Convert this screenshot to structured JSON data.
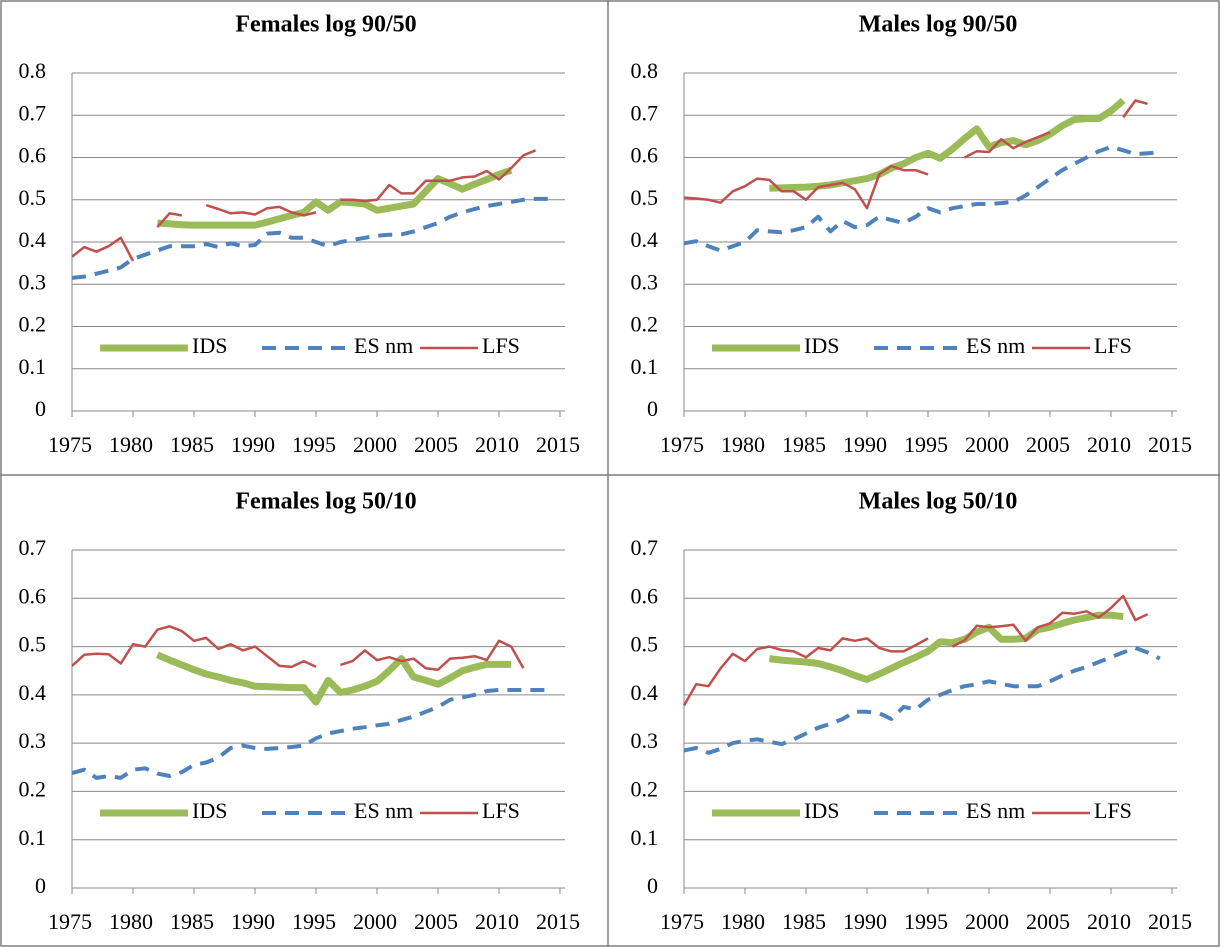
{
  "chart_data": [
    {
      "type": "line",
      "title": "Females log 90/50",
      "x": [
        1975,
        1976,
        1977,
        1978,
        1979,
        1980,
        1981,
        1982,
        1983,
        1984,
        1985,
        1986,
        1987,
        1988,
        1989,
        1990,
        1991,
        1992,
        1993,
        1994,
        1995,
        1996,
        1997,
        1998,
        1999,
        2000,
        2001,
        2002,
        2003,
        2004,
        2005,
        2006,
        2007,
        2008,
        2009,
        2010,
        2011,
        2012,
        2013,
        2014
      ],
      "xlim": [
        1975,
        2015
      ],
      "xticks": [
        1975,
        1980,
        1985,
        1990,
        1995,
        2000,
        2005,
        2010,
        2015
      ],
      "ylim": [
        0,
        0.8
      ],
      "yticks": [
        0,
        0.1,
        0.2,
        0.3,
        0.4,
        0.5,
        0.6,
        0.7,
        0.8
      ],
      "grid": true,
      "series": [
        {
          "name": "IDS",
          "color": "#9bbb59",
          "values": [
            null,
            null,
            null,
            null,
            null,
            null,
            null,
            0.445,
            0.443,
            0.441,
            0.44,
            0.44,
            0.44,
            0.44,
            0.44,
            0.44,
            0.447,
            0.455,
            0.463,
            0.47,
            0.495,
            0.475,
            0.495,
            0.493,
            0.49,
            0.475,
            0.48,
            0.485,
            0.49,
            0.52,
            0.55,
            0.538,
            0.525,
            0.537,
            0.548,
            0.56,
            0.57,
            null,
            null,
            null
          ]
        },
        {
          "name": "ES nm",
          "color": "#4f81bd",
          "values": [
            0.315,
            0.318,
            0.325,
            0.332,
            0.34,
            0.36,
            0.37,
            0.38,
            0.39,
            0.39,
            0.39,
            0.395,
            0.388,
            0.397,
            0.39,
            0.393,
            0.42,
            0.422,
            0.41,
            0.41,
            0.4,
            0.39,
            0.4,
            0.405,
            0.41,
            0.415,
            0.417,
            0.418,
            0.425,
            0.435,
            0.445,
            0.46,
            0.47,
            0.478,
            0.485,
            0.49,
            0.495,
            0.5,
            0.502,
            0.502
          ]
        },
        {
          "name": "LFS",
          "color": "#c0504d",
          "values": [
            0.365,
            0.388,
            0.377,
            0.39,
            0.41,
            0.355,
            null,
            0.435,
            0.468,
            0.463,
            null,
            0.487,
            0.478,
            0.468,
            0.47,
            0.465,
            0.48,
            0.483,
            0.47,
            0.463,
            0.47,
            null,
            0.5,
            0.5,
            0.497,
            0.5,
            0.535,
            0.515,
            0.515,
            0.545,
            0.545,
            0.545,
            0.553,
            0.555,
            0.568,
            0.548,
            0.575,
            0.605,
            0.617,
            null
          ]
        }
      ]
    },
    {
      "type": "line",
      "title": "Males log 90/50",
      "x": [
        1975,
        1976,
        1977,
        1978,
        1979,
        1980,
        1981,
        1982,
        1983,
        1984,
        1985,
        1986,
        1987,
        1988,
        1989,
        1990,
        1991,
        1992,
        1993,
        1994,
        1995,
        1996,
        1997,
        1998,
        1999,
        2000,
        2001,
        2002,
        2003,
        2004,
        2005,
        2006,
        2007,
        2008,
        2009,
        2010,
        2011,
        2012,
        2013,
        2014
      ],
      "xlim": [
        1975,
        2015
      ],
      "xticks": [
        1975,
        1980,
        1985,
        1990,
        1995,
        2000,
        2005,
        2010,
        2015
      ],
      "ylim": [
        0,
        0.8
      ],
      "yticks": [
        0,
        0.1,
        0.2,
        0.3,
        0.4,
        0.5,
        0.6,
        0.7,
        0.8
      ],
      "grid": true,
      "series": [
        {
          "name": "IDS",
          "color": "#9bbb59",
          "values": [
            null,
            null,
            null,
            null,
            null,
            null,
            null,
            0.527,
            0.528,
            0.529,
            0.53,
            0.532,
            0.535,
            0.54,
            0.545,
            0.55,
            0.56,
            0.575,
            0.585,
            0.6,
            0.61,
            0.598,
            0.62,
            0.645,
            0.668,
            0.625,
            0.635,
            0.64,
            0.63,
            0.64,
            0.655,
            0.675,
            0.69,
            0.692,
            0.692,
            0.71,
            0.735,
            null,
            null,
            null
          ]
        },
        {
          "name": "ES nm",
          "color": "#4f81bd",
          "values": [
            0.397,
            0.402,
            0.39,
            0.38,
            0.39,
            0.4,
            0.428,
            0.425,
            0.423,
            0.428,
            0.435,
            0.46,
            0.425,
            0.45,
            0.435,
            0.44,
            0.46,
            0.452,
            0.445,
            0.46,
            0.48,
            0.47,
            0.48,
            0.485,
            0.49,
            0.49,
            0.492,
            0.495,
            0.51,
            0.53,
            0.55,
            0.57,
            0.585,
            0.6,
            0.615,
            0.625,
            0.617,
            0.608,
            0.61,
            0.612
          ]
        },
        {
          "name": "LFS",
          "color": "#c0504d",
          "values": [
            0.505,
            0.503,
            0.5,
            0.493,
            0.52,
            0.532,
            0.55,
            0.547,
            0.52,
            0.52,
            0.5,
            0.53,
            0.535,
            0.54,
            0.525,
            0.48,
            0.56,
            0.58,
            0.57,
            0.57,
            0.56,
            null,
            null,
            0.6,
            0.615,
            0.613,
            0.643,
            0.622,
            0.637,
            0.648,
            0.66,
            null,
            null,
            null,
            null,
            null,
            0.695,
            0.735,
            0.727,
            null
          ]
        }
      ]
    },
    {
      "type": "line",
      "title": "Females log 50/10",
      "x": [
        1975,
        1976,
        1977,
        1978,
        1979,
        1980,
        1981,
        1982,
        1983,
        1984,
        1985,
        1986,
        1987,
        1988,
        1989,
        1990,
        1991,
        1992,
        1993,
        1994,
        1995,
        1996,
        1997,
        1998,
        1999,
        2000,
        2001,
        2002,
        2003,
        2004,
        2005,
        2006,
        2007,
        2008,
        2009,
        2010,
        2011,
        2012,
        2013,
        2014
      ],
      "xlim": [
        1975,
        2015
      ],
      "xticks": [
        1975,
        1980,
        1985,
        1990,
        1995,
        2000,
        2005,
        2010,
        2015
      ],
      "ylim": [
        0,
        0.7
      ],
      "yticks": [
        0,
        0.1,
        0.2,
        0.3,
        0.4,
        0.5,
        0.6,
        0.7
      ],
      "grid": true,
      "series": [
        {
          "name": "IDS",
          "color": "#9bbb59",
          "values": [
            null,
            null,
            null,
            null,
            null,
            null,
            null,
            0.483,
            0.472,
            0.462,
            0.452,
            0.443,
            0.437,
            0.43,
            0.425,
            0.418,
            0.417,
            0.416,
            0.415,
            0.415,
            0.385,
            0.43,
            0.405,
            0.41,
            0.418,
            0.428,
            0.45,
            0.475,
            0.437,
            0.43,
            0.422,
            0.435,
            0.45,
            0.457,
            0.463,
            0.463,
            0.463,
            null,
            null,
            null
          ]
        },
        {
          "name": "ES nm",
          "color": "#4f81bd",
          "values": [
            0.238,
            0.245,
            0.228,
            0.232,
            0.228,
            0.245,
            0.248,
            0.237,
            0.232,
            0.24,
            0.255,
            0.26,
            0.27,
            0.29,
            0.295,
            0.29,
            0.288,
            0.29,
            0.292,
            0.295,
            0.31,
            0.32,
            0.325,
            0.33,
            0.333,
            0.337,
            0.34,
            0.348,
            0.355,
            0.365,
            0.375,
            0.39,
            0.395,
            0.4,
            0.408,
            0.41,
            0.41,
            0.41,
            0.41,
            0.41
          ]
        },
        {
          "name": "LFS",
          "color": "#c0504d",
          "values": [
            0.46,
            0.483,
            0.485,
            0.484,
            0.465,
            0.505,
            0.5,
            0.535,
            0.542,
            0.532,
            0.512,
            0.518,
            0.495,
            0.505,
            0.492,
            0.5,
            0.48,
            0.46,
            0.458,
            0.47,
            0.458,
            null,
            0.462,
            0.47,
            0.492,
            0.472,
            0.478,
            0.47,
            0.475,
            0.455,
            0.452,
            0.475,
            0.477,
            0.48,
            0.472,
            0.512,
            0.5,
            0.455,
            null,
            null
          ]
        }
      ]
    },
    {
      "type": "line",
      "title": "Males log 50/10",
      "x": [
        1975,
        1976,
        1977,
        1978,
        1979,
        1980,
        1981,
        1982,
        1983,
        1984,
        1985,
        1986,
        1987,
        1988,
        1989,
        1990,
        1991,
        1992,
        1993,
        1994,
        1995,
        1996,
        1997,
        1998,
        1999,
        2000,
        2001,
        2002,
        2003,
        2004,
        2005,
        2006,
        2007,
        2008,
        2009,
        2010,
        2011,
        2012,
        2013,
        2014
      ],
      "xlim": [
        1975,
        2015
      ],
      "xticks": [
        1975,
        1980,
        1985,
        1990,
        1995,
        2000,
        2005,
        2010,
        2015
      ],
      "ylim": [
        0,
        0.7
      ],
      "yticks": [
        0,
        0.1,
        0.2,
        0.3,
        0.4,
        0.5,
        0.6,
        0.7
      ],
      "grid": true,
      "series": [
        {
          "name": "IDS",
          "color": "#9bbb59",
          "values": [
            null,
            null,
            null,
            null,
            null,
            null,
            null,
            0.475,
            0.472,
            0.47,
            0.468,
            0.465,
            0.458,
            0.45,
            0.44,
            0.432,
            0.443,
            0.455,
            0.467,
            0.478,
            0.49,
            0.51,
            0.508,
            0.515,
            0.53,
            0.54,
            0.515,
            0.515,
            0.517,
            0.535,
            0.54,
            0.548,
            0.555,
            0.56,
            0.565,
            0.565,
            0.562,
            null,
            null,
            null
          ]
        },
        {
          "name": "ES nm",
          "color": "#4f81bd",
          "values": [
            0.285,
            0.29,
            0.28,
            0.288,
            0.3,
            0.305,
            0.308,
            0.303,
            0.298,
            0.308,
            0.32,
            0.332,
            0.34,
            0.35,
            0.365,
            0.365,
            0.362,
            0.35,
            0.375,
            0.37,
            0.39,
            0.4,
            0.41,
            0.418,
            0.422,
            0.428,
            0.423,
            0.418,
            0.418,
            0.418,
            0.428,
            0.44,
            0.45,
            0.458,
            0.468,
            0.478,
            0.488,
            0.497,
            0.488,
            0.475
          ]
        },
        {
          "name": "LFS",
          "color": "#c0504d",
          "values": [
            0.378,
            0.422,
            0.418,
            0.455,
            0.485,
            0.47,
            0.495,
            0.5,
            0.493,
            0.49,
            0.478,
            0.497,
            0.492,
            0.517,
            0.512,
            0.517,
            0.497,
            0.49,
            0.49,
            0.503,
            0.517,
            null,
            0.5,
            0.513,
            0.543,
            0.54,
            0.542,
            0.545,
            0.512,
            0.54,
            0.548,
            0.57,
            0.568,
            0.573,
            0.56,
            0.58,
            0.605,
            0.555,
            0.567,
            null
          ]
        }
      ]
    }
  ]
}
